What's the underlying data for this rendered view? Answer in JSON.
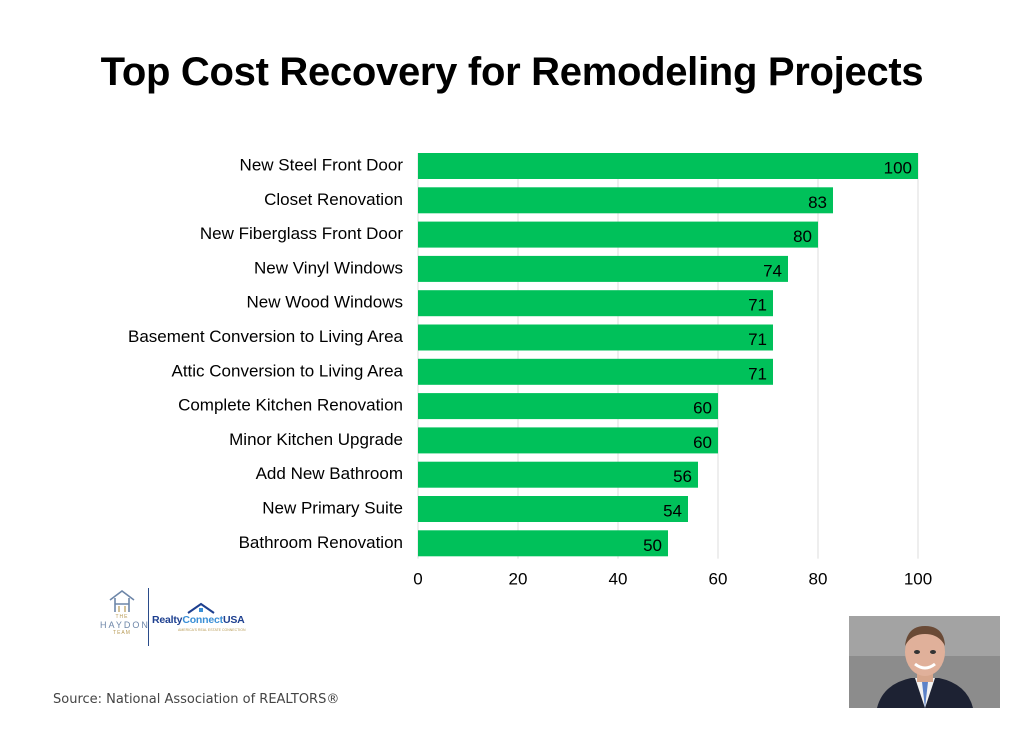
{
  "title": "Top Cost Recovery for Remodeling Projects",
  "source": "Source: National Association of REALTORS®",
  "logos": {
    "haydon_top": "THE",
    "haydon_name": "HAYDON",
    "haydon_bottom": "TEAM",
    "realty_name_part1": "Realty",
    "realty_name_part2": "Connect",
    "realty_name_part3": "USA",
    "realty_tagline": "AMERICA'S REAL ESTATE CONNECTION"
  },
  "colors": {
    "bar": "#00c15a",
    "grid": "#dddddd",
    "text": "#000000"
  },
  "chart_data": {
    "type": "bar",
    "orientation": "horizontal",
    "categories": [
      "New Steel Front Door",
      "Closet Renovation",
      "New Fiberglass Front Door",
      "New Vinyl Windows",
      "New Wood Windows",
      "Basement Conversion to Living Area",
      "Attic Conversion to Living Area",
      "Complete Kitchen Renovation",
      "Minor Kitchen Upgrade",
      "Add New Bathroom",
      "New Primary Suite",
      "Bathroom Renovation"
    ],
    "values": [
      100,
      83,
      80,
      74,
      71,
      71,
      71,
      60,
      60,
      56,
      54,
      50
    ],
    "xlim": [
      0,
      100
    ],
    "xticks": [
      0,
      20,
      40,
      60,
      80,
      100
    ],
    "data_labels": true,
    "grid": "vertical"
  }
}
